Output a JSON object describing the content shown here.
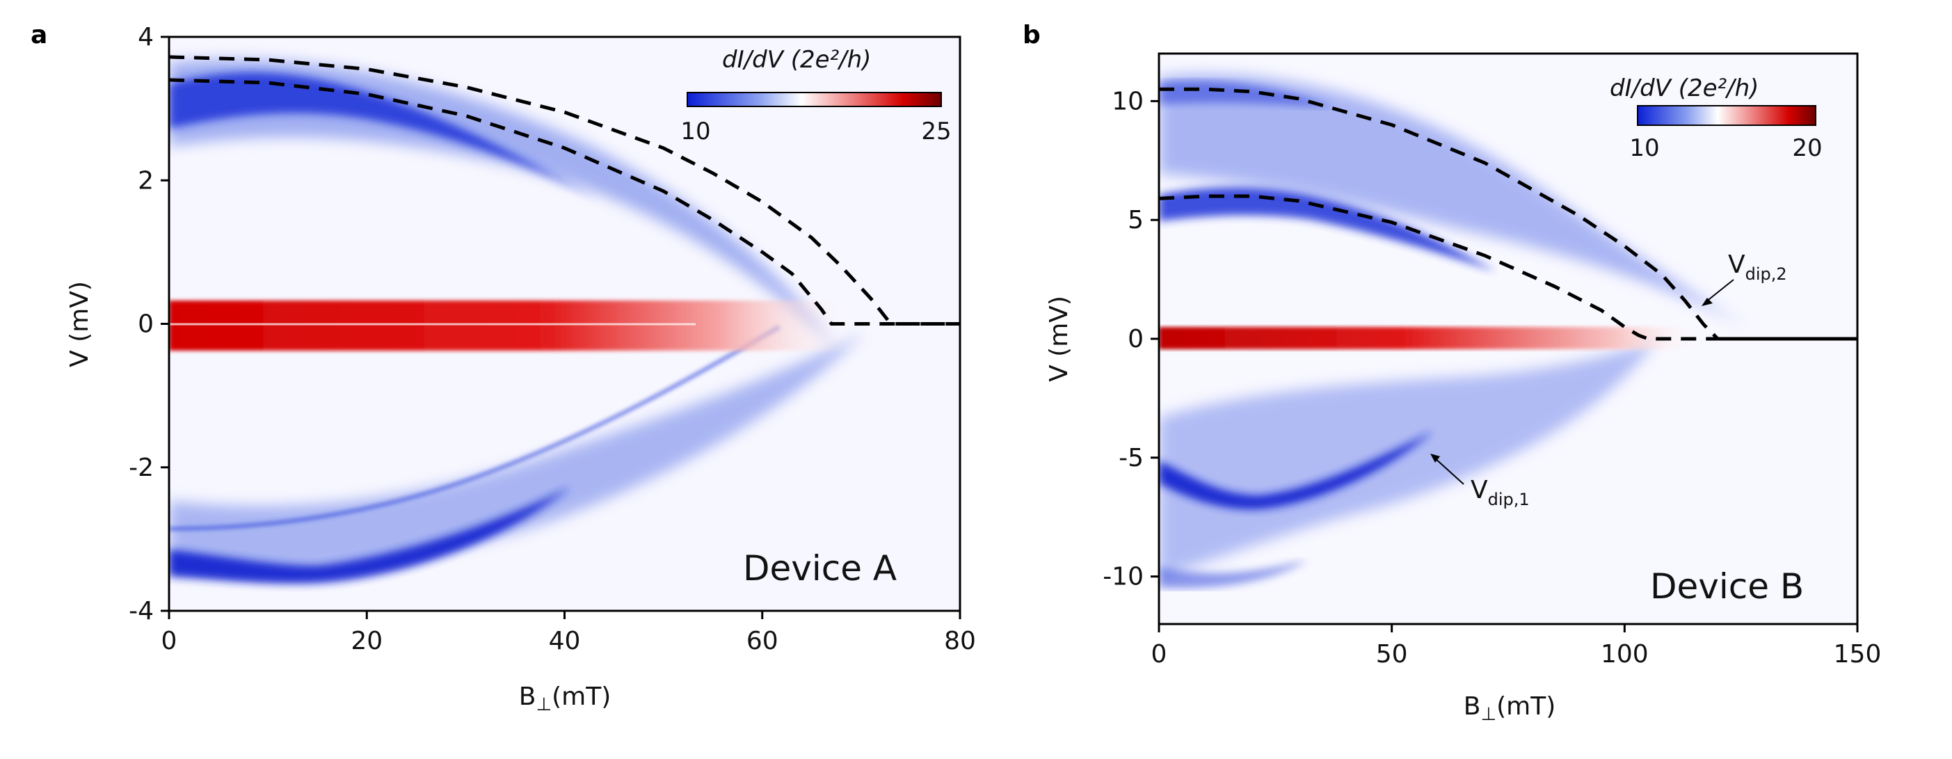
{
  "chart_data": [
    {
      "type": "heatmap",
      "panel": "a",
      "xlabel": "B",
      "xlabel_subscript": "⊥",
      "xlabel_unit": "(mT)",
      "ylabel": "V (mV)",
      "xlim": [
        0,
        80
      ],
      "ylim": [
        -4,
        4
      ],
      "x_ticks": [
        0,
        20,
        40,
        60,
        80
      ],
      "y_ticks": [
        4,
        2,
        0,
        -2,
        -4
      ],
      "y_tick_labels": [
        "4",
        "2",
        "0",
        "-2",
        "-4"
      ],
      "colorbar": {
        "label": "dI/dV (2e²/h)",
        "min": 10,
        "max": 25,
        "tick_labels": [
          "10",
          "25"
        ]
      },
      "annotation": "Device A",
      "colors": {
        "low": "#0a1fd6",
        "mid": "#ffffff",
        "high": "#d40000",
        "max": "#6e0000"
      },
      "features": {
        "zero_bias_peak_end": 60,
        "upper_band_peak_V": 3.1,
        "lower_band_peak_V": -3.3,
        "closing_field": 73
      },
      "dashed_lines": [
        {
          "x": [
            0,
            10,
            20,
            30,
            40,
            50,
            55,
            60,
            63,
            66,
            67,
            80
          ],
          "y": [
            3.4,
            3.36,
            3.2,
            2.9,
            2.45,
            1.85,
            1.45,
            1.0,
            0.7,
            0.2,
            0.0,
            0.0
          ]
        },
        {
          "x": [
            0,
            10,
            20,
            30,
            40,
            50,
            55,
            60,
            65,
            68,
            71,
            73,
            80
          ],
          "y": [
            3.72,
            3.68,
            3.55,
            3.3,
            2.95,
            2.45,
            2.1,
            1.7,
            1.2,
            0.8,
            0.35,
            0.0,
            0.0
          ]
        }
      ]
    },
    {
      "type": "heatmap",
      "panel": "b",
      "xlabel": "B",
      "xlabel_subscript": "⊥",
      "xlabel_unit": "(mT)",
      "ylabel": "V (mV)",
      "xlim": [
        0,
        150
      ],
      "ylim": [
        -12,
        12
      ],
      "x_ticks": [
        0,
        50,
        100,
        150
      ],
      "y_ticks": [
        10,
        5,
        0,
        -5,
        -10
      ],
      "y_tick_labels": [
        "10",
        "5",
        "0",
        "-5",
        "-10"
      ],
      "colorbar": {
        "label": "dI/dV (2e²/h)",
        "min": 10,
        "max": 20,
        "tick_labels": [
          "10",
          "20"
        ]
      },
      "annotation": "Device B",
      "annotations": [
        {
          "main": "V",
          "sub": "dip,2",
          "x": 124,
          "y": 2.8
        },
        {
          "main": "V",
          "sub": "dip,1",
          "x": 68,
          "y": -6.3
        }
      ],
      "colors": {
        "low": "#0a1fd6",
        "mid": "#ffffff",
        "high": "#d40000",
        "max": "#6e0000"
      },
      "dashed_lines": [
        {
          "x": [
            0,
            10,
            20,
            30,
            50,
            70,
            85,
            95,
            100,
            103,
            105,
            120
          ],
          "y": [
            5.9,
            6.0,
            6.0,
            5.8,
            4.9,
            3.5,
            2.2,
            1.2,
            0.5,
            0.15,
            0.0,
            0.0
          ]
        },
        {
          "x": [
            0,
            10,
            20,
            30,
            50,
            70,
            90,
            100,
            108,
            113,
            117,
            120
          ],
          "y": [
            10.5,
            10.5,
            10.4,
            10.1,
            9.0,
            7.4,
            5.2,
            3.9,
            2.7,
            1.6,
            0.6,
            0.0
          ]
        }
      ],
      "solid_line": {
        "x": [
          120,
          150
        ],
        "y": [
          0,
          0
        ]
      }
    }
  ],
  "panels": {
    "a": {
      "letter": "a"
    },
    "b": {
      "letter": "b"
    }
  }
}
